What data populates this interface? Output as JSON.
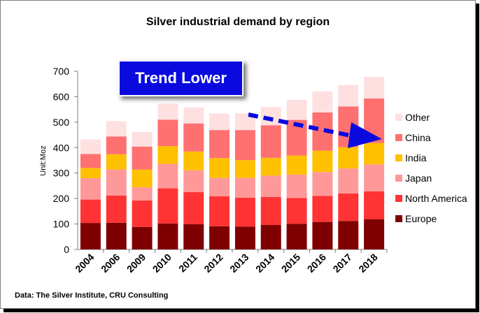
{
  "chart_data": {
    "type": "bar",
    "stacked": true,
    "title": "Silver industrial demand by region",
    "ylabel": "Unit:Moz",
    "xlabel": "",
    "ylim": [
      0,
      700
    ],
    "yticks": [
      0,
      100,
      200,
      300,
      400,
      500,
      600,
      700
    ],
    "grid": false,
    "legend_position": "right",
    "categories": [
      "2004",
      "2006",
      "2009",
      "2010",
      "2011",
      "2012",
      "2013",
      "2014",
      "2015",
      "2016",
      "2017",
      "2018"
    ],
    "series": [
      {
        "name": "Europe",
        "color": "#7f0000",
        "values": [
          104,
          105,
          88,
          102,
          99,
          91,
          90,
          96,
          101,
          108,
          112,
          118
        ]
      },
      {
        "name": "North America",
        "color": "#ff3333",
        "values": [
          92,
          107,
          104,
          138,
          126,
          118,
          113,
          110,
          101,
          102,
          108,
          110
        ]
      },
      {
        "name": "Japan",
        "color": "#ff9999",
        "values": [
          84,
          102,
          52,
          96,
          86,
          72,
          78,
          84,
          92,
          94,
          98,
          106
        ]
      },
      {
        "name": "India",
        "color": "#ffc000",
        "values": [
          40,
          60,
          70,
          70,
          74,
          78,
          70,
          70,
          75,
          84,
          84,
          84
        ]
      },
      {
        "name": "China",
        "color": "#ff7070",
        "values": [
          55,
          70,
          90,
          104,
          110,
          110,
          118,
          128,
          140,
          150,
          160,
          175
        ]
      },
      {
        "name": "Other",
        "color": "#ffe0e0",
        "values": [
          57,
          60,
          58,
          63,
          63,
          65,
          66,
          72,
          79,
          83,
          84,
          85
        ]
      }
    ],
    "legend_order": [
      "Other",
      "China",
      "India",
      "Japan",
      "North America",
      "Europe"
    ]
  },
  "callout": {
    "text": "Trend Lower"
  },
  "source_note": "Data: The Silver Institute, CRU Consulting"
}
